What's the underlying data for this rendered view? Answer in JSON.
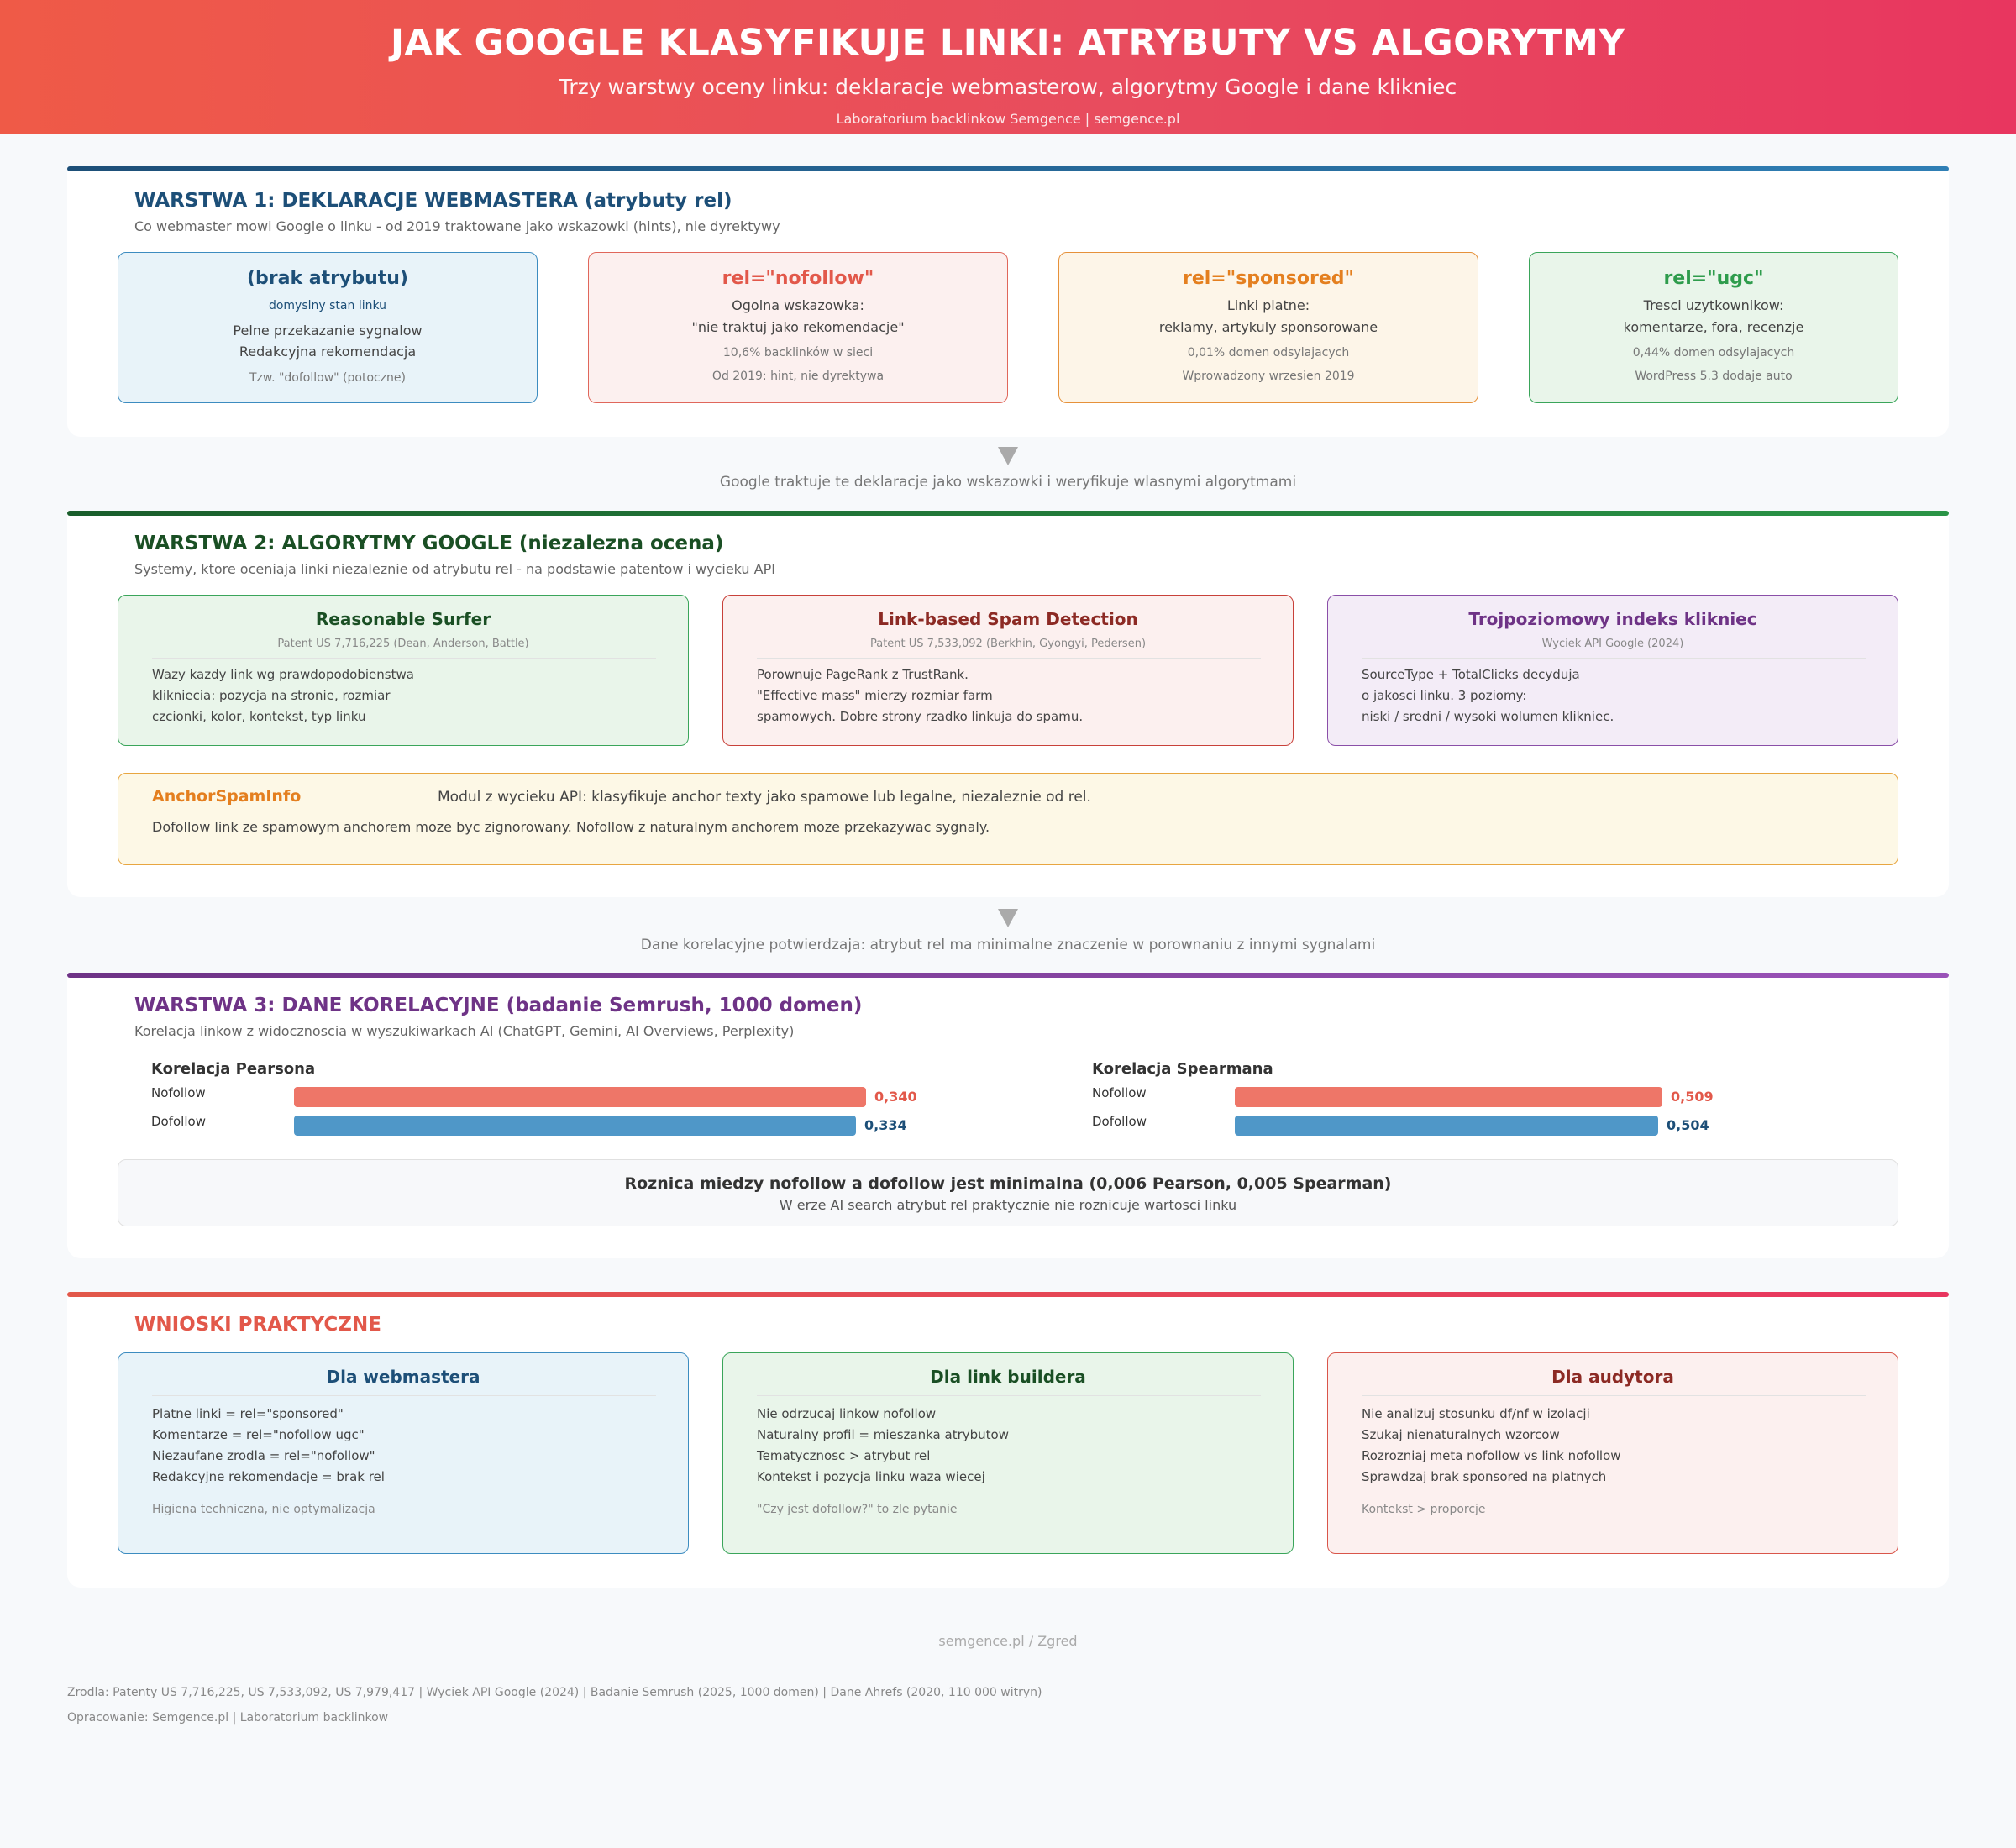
{
  "header": {
    "title": "JAK GOOGLE KLASYFIKUJE LINKI: ATRYBUTY VS ALGORYTMY",
    "subtitle": "Trzy warstwy oceny linku: deklaracje webmasterow, algorytmy Google i dane klikniec",
    "lab": "Laboratorium backlinkow Semgence | semgence.pl"
  },
  "layer1": {
    "title": "WARSTWA 1: DEKLARACJE WEBMASTERA (atrybuty rel)",
    "desc": "Co webmaster mowi Google o linku - od 2019 traktowane jako wskazowki (hints), nie dyrektywy",
    "cards": [
      {
        "title": "(brak atrybutu)",
        "subtitle": "domyslny stan linku",
        "line1": "Pelne przekazanie sygnalow",
        "line2": "Redakcyjna rekomendacja",
        "note1": "",
        "note2": "Tzw. \"dofollow\" (potoczne)"
      },
      {
        "title": "rel=\"nofollow\"",
        "subtitle": "",
        "line1": "Ogolna wskazowka:",
        "line2": "\"nie traktuj jako rekomendacje\"",
        "note1": "10,6% backlinków w sieci",
        "note2": "Od 2019: hint, nie dyrektywa"
      },
      {
        "title": "rel=\"sponsored\"",
        "subtitle": "",
        "line1": "Linki platne:",
        "line2": "reklamy, artykuly sponsorowane",
        "note1": "0,01% domen odsylajacych",
        "note2": "Wprowadzony wrzesien 2019"
      },
      {
        "title": "rel=\"ugc\"",
        "subtitle": "",
        "line1": "Tresci uzytkownikow:",
        "line2": "komentarze, fora, recenzje",
        "note1": "0,44% domen odsylajacych",
        "note2": "WordPress 5.3 dodaje auto"
      }
    ]
  },
  "transition1": "Google traktuje te deklaracje jako wskazowki i weryfikuje wlasnymi algorytmami",
  "layer2": {
    "title": "WARSTWA 2: ALGORYTMY GOOGLE (niezalezna ocena)",
    "desc": "Systemy, ktore oceniaja linki niezaleznie od atrybutu rel - na podstawie patentow i wycieku API",
    "cards": [
      {
        "title": "Reasonable Surfer",
        "source": "Patent US 7,716,225 (Dean, Anderson, Battle)",
        "lines": [
          "Wazy kazdy link wg prawdopodobienstwa",
          "klikniecia: pozycja na stronie, rozmiar",
          "czcionki, kolor, kontekst, typ linku"
        ]
      },
      {
        "title": "Link-based Spam Detection",
        "source": "Patent US 7,533,092 (Berkhin, Gyongyi, Pedersen)",
        "lines": [
          "Porownuje PageRank z TrustRank.",
          "\"Effective mass\" mierzy rozmiar farm",
          "spamowych. Dobre strony rzadko linkuja do spamu."
        ]
      },
      {
        "title": "Trojpoziomowy indeks klikniec",
        "source": "Wyciek API Google (2024)",
        "lines": [
          "SourceType + TotalClicks decyduja",
          "o jakosci linku. 3 poziomy:",
          "niski / sredni / wysoki wolumen klikniec."
        ]
      }
    ],
    "anchor": {
      "title": "AnchorSpamInfo",
      "desc": "Modul z wycieku API: klasyfikuje anchor texty jako spamowe lub legalne, niezaleznie od rel.",
      "note": "Dofollow link ze spamowym anchorem moze byc zignorowany. Nofollow z naturalnym anchorem moze przekazywac sygnaly."
    }
  },
  "transition2": "Dane korelacyjne potwierdzaja: atrybut rel ma minimalne znaczenie w porownaniu z innymi sygnalami",
  "layer3": {
    "title": "WARSTWA 3: DANE KORELACYJNE (badanie Semrush, 1000 domen)",
    "desc": "Korelacja linkow z widocznoscia w wyszukiwarkach AI (ChatGPT, Gemini, AI Overviews, Perplexity)",
    "summary_title": "Roznica miedzy nofollow a dofollow jest minimalna (0,006 Pearson, 0,005 Spearman)",
    "summary_desc": "W erze AI search atrybut rel praktycznie nie roznicuje wartosci linku"
  },
  "chart_data": [
    {
      "type": "bar",
      "title": "Korelacja Pearsona",
      "categories": [
        "Nofollow",
        "Dofollow"
      ],
      "values": [
        0.34,
        0.334
      ],
      "value_labels": [
        "0,340",
        "0,334"
      ],
      "colors": [
        "#ee7668",
        "#4f97c8"
      ]
    },
    {
      "type": "bar",
      "title": "Korelacja Spearmana",
      "categories": [
        "Nofollow",
        "Dofollow"
      ],
      "values": [
        0.509,
        0.504
      ],
      "value_labels": [
        "0,509",
        "0,504"
      ],
      "colors": [
        "#ee7668",
        "#4f97c8"
      ]
    }
  ],
  "conclusions": {
    "title": "WNIOSKI PRAKTYCZNE",
    "cards": [
      {
        "title": "Dla webmastera",
        "lines": [
          "Platne linki = rel=\"sponsored\"",
          "Komentarze = rel=\"nofollow ugc\"",
          "Niezaufane zrodla = rel=\"nofollow\"",
          "Redakcyjne rekomendacje = brak rel"
        ],
        "note": "Higiena techniczna, nie optymalizacja"
      },
      {
        "title": "Dla link buildera",
        "lines": [
          "Nie odrzucaj linkow nofollow",
          "Naturalny profil = mieszanka atrybutow",
          "Tematycznosc > atrybut rel",
          "Kontekst i pozycja linku waza wiecej"
        ],
        "note": "\"Czy jest dofollow?\" to zle pytanie"
      },
      {
        "title": "Dla audytora",
        "lines": [
          "Nie analizuj stosunku df/nf w izolacji",
          "Szukaj nienaturalnych wzorcow",
          "Rozrozniaj meta nofollow vs link nofollow",
          "Sprawdzaj brak sponsored na platnych"
        ],
        "note": "Kontekst > proporcje"
      }
    ]
  },
  "footer": {
    "brand": "semgence.pl / Zgred",
    "sources": "Zrodla: Patenty US 7,716,225, US 7,533,092, US 7,979,417 | Wyciek API Google (2024) | Badanie Semrush (2025, 1000 domen) | Dane Ahrefs (2020, 110 000 witryn)",
    "credit": "Opracowanie: Semgence.pl | Laboratorium backlinkow"
  },
  "colors": {
    "layer1": "#1d4f78",
    "layer2": "#1a5e2c",
    "layer3": "#6e3386",
    "conclusions": "#e2584a",
    "nofollow_bar": "#ee7668",
    "dofollow_bar": "#4f97c8"
  }
}
